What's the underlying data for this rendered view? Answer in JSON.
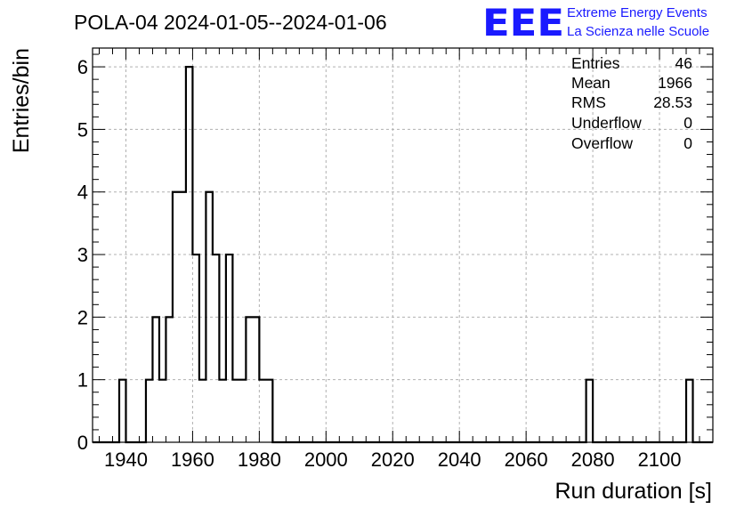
{
  "header": {
    "title": "POLA-04 2024-01-05--2024-01-06",
    "logo_text": "EEE",
    "logo_line1": "Extreme Energy Events",
    "logo_line2": "La Scienza nelle Scuole"
  },
  "stats": [
    {
      "label": "Entries",
      "value": "46"
    },
    {
      "label": "Mean",
      "value": "1966"
    },
    {
      "label": "RMS",
      "value": "28.53"
    },
    {
      "label": "Underflow",
      "value": "0"
    },
    {
      "label": "Overflow",
      "value": "0"
    }
  ],
  "colors": {
    "logo": "#1a1aff",
    "grid": "#b0b0b0",
    "line": "#000000"
  },
  "chart_data": {
    "type": "histogram",
    "title": "POLA-04 2024-01-05--2024-01-06",
    "xlabel": "Run duration [s]",
    "ylabel": "Entries/bin",
    "xlim": [
      1930,
      2116
    ],
    "ylim": [
      0,
      6.3
    ],
    "bin_width": 2,
    "xticks": [
      1940,
      1960,
      1980,
      2000,
      2020,
      2040,
      2060,
      2080,
      2100
    ],
    "yticks": [
      0,
      1,
      2,
      3,
      4,
      5,
      6
    ],
    "grid": true,
    "bins": [
      {
        "x": 1938,
        "count": 1
      },
      {
        "x": 1946,
        "count": 1
      },
      {
        "x": 1948,
        "count": 2
      },
      {
        "x": 1950,
        "count": 1
      },
      {
        "x": 1952,
        "count": 2
      },
      {
        "x": 1954,
        "count": 4
      },
      {
        "x": 1956,
        "count": 4
      },
      {
        "x": 1958,
        "count": 6
      },
      {
        "x": 1960,
        "count": 3
      },
      {
        "x": 1962,
        "count": 1
      },
      {
        "x": 1964,
        "count": 4
      },
      {
        "x": 1966,
        "count": 3
      },
      {
        "x": 1968,
        "count": 1
      },
      {
        "x": 1970,
        "count": 3
      },
      {
        "x": 1972,
        "count": 1
      },
      {
        "x": 1974,
        "count": 1
      },
      {
        "x": 1976,
        "count": 2
      },
      {
        "x": 1978,
        "count": 2
      },
      {
        "x": 1980,
        "count": 1
      },
      {
        "x": 1982,
        "count": 1
      },
      {
        "x": 2078,
        "count": 1
      },
      {
        "x": 2108,
        "count": 1
      }
    ]
  }
}
